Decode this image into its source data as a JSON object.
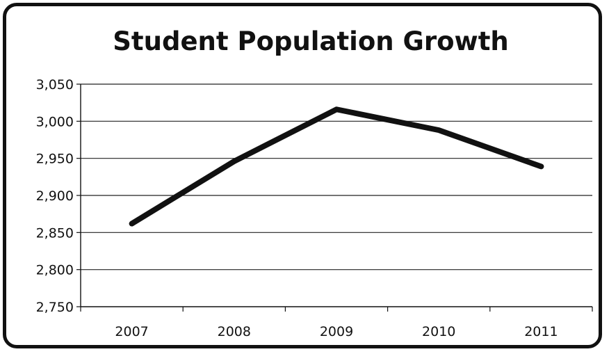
{
  "chart_data": {
    "type": "line",
    "title": "Student Population Growth",
    "xlabel": "",
    "ylabel": "",
    "categories": [
      "2007",
      "2008",
      "2009",
      "2010",
      "2011"
    ],
    "series": [
      {
        "values": [
          2862,
          2946,
          3016,
          2988,
          2939
        ]
      }
    ],
    "ylim": [
      2750,
      3050
    ],
    "yticks": [
      2750,
      2800,
      2850,
      2900,
      2950,
      3000,
      3050
    ],
    "ytick_labels": [
      "2,750",
      "2,800",
      "2,850",
      "2,900",
      "2,950",
      "3,000",
      "3,050"
    ],
    "grid": true,
    "legend": "none",
    "line_color": "#111111",
    "grid_color": "#222222"
  }
}
